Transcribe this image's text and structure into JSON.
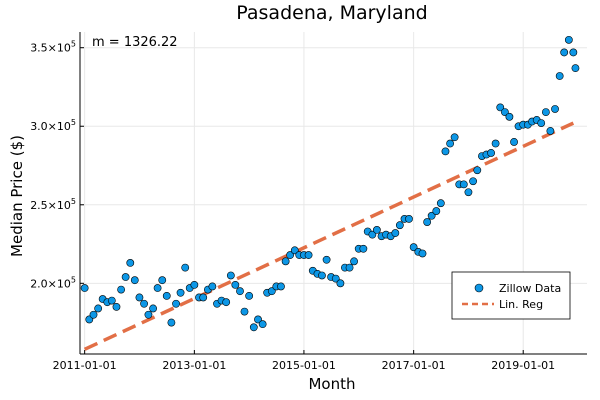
{
  "chart_data": {
    "type": "scatter",
    "title": "Pasadena, Maryland",
    "xlabel": "Month",
    "ylabel": "Median Price ($)",
    "annotation": "m = 1326.22",
    "xlim": [
      "2010-12-01",
      "2020-03-01"
    ],
    "ylim": [
      155000,
      360000
    ],
    "x_ticks": [
      "2011-01-01",
      "2013-01-01",
      "2015-01-01",
      "2017-01-01",
      "2019-01-01"
    ],
    "y_ticks": [
      {
        "value": 200000,
        "mantissa": "2.0",
        "exp": "5"
      },
      {
        "value": 250000,
        "mantissa": "2.5",
        "exp": "5"
      },
      {
        "value": 300000,
        "mantissa": "3.0",
        "exp": "5"
      },
      {
        "value": 350000,
        "mantissa": "3.5",
        "exp": "5"
      }
    ],
    "tick_base": "×10",
    "grid": true,
    "legend_position": "bottom-right",
    "series": [
      {
        "name": "Zillow Data",
        "kind": "scatter",
        "color": "#0d97e6",
        "x": [
          "2011-01-01",
          "2011-02-01",
          "2011-03-01",
          "2011-04-01",
          "2011-05-01",
          "2011-06-01",
          "2011-07-01",
          "2011-08-01",
          "2011-09-01",
          "2011-10-01",
          "2011-11-01",
          "2011-12-01",
          "2012-01-01",
          "2012-02-01",
          "2012-03-01",
          "2012-04-01",
          "2012-05-01",
          "2012-06-01",
          "2012-07-01",
          "2012-08-01",
          "2012-09-01",
          "2012-10-01",
          "2012-11-01",
          "2012-12-01",
          "2013-01-01",
          "2013-02-01",
          "2013-03-01",
          "2013-04-01",
          "2013-05-01",
          "2013-06-01",
          "2013-07-01",
          "2013-08-01",
          "2013-09-01",
          "2013-10-01",
          "2013-11-01",
          "2013-12-01",
          "2014-01-01",
          "2014-02-01",
          "2014-03-01",
          "2014-04-01",
          "2014-05-01",
          "2014-06-01",
          "2014-07-01",
          "2014-08-01",
          "2014-09-01",
          "2014-10-01",
          "2014-11-01",
          "2014-12-01",
          "2015-01-01",
          "2015-02-01",
          "2015-03-01",
          "2015-04-01",
          "2015-05-01",
          "2015-06-01",
          "2015-07-01",
          "2015-08-01",
          "2015-09-01",
          "2015-10-01",
          "2015-11-01",
          "2015-12-01",
          "2016-01-01",
          "2016-02-01",
          "2016-03-01",
          "2016-04-01",
          "2016-05-01",
          "2016-06-01",
          "2016-07-01",
          "2016-08-01",
          "2016-09-01",
          "2016-10-01",
          "2016-11-01",
          "2016-12-01",
          "2017-01-01",
          "2017-02-01",
          "2017-03-01",
          "2017-04-01",
          "2017-05-01",
          "2017-06-01",
          "2017-07-01",
          "2017-08-01",
          "2017-09-01",
          "2017-10-01",
          "2017-11-01",
          "2017-12-01",
          "2018-01-01",
          "2018-02-01",
          "2018-03-01",
          "2018-04-01",
          "2018-05-01",
          "2018-06-01",
          "2018-07-01",
          "2018-08-01",
          "2018-09-01",
          "2018-10-01",
          "2018-11-01",
          "2018-12-01",
          "2019-01-01",
          "2019-02-01",
          "2019-03-01",
          "2019-04-01",
          "2019-05-01",
          "2019-06-01",
          "2019-07-01",
          "2019-08-01",
          "2019-09-01",
          "2019-10-01",
          "2019-11-01",
          "2019-12-01"
        ],
        "y": [
          197000,
          177000,
          180000,
          184000,
          190000,
          188000,
          189000,
          185000,
          196000,
          204000,
          213000,
          202000,
          191000,
          187000,
          180000,
          184000,
          197000,
          202000,
          192000,
          175000,
          187000,
          194000,
          210000,
          197000,
          199000,
          191000,
          191000,
          196000,
          198000,
          187000,
          189000,
          188000,
          205000,
          199000,
          195000,
          182000,
          192000,
          172000,
          177000,
          174000,
          194000,
          195000,
          198000,
          198000,
          214000,
          218000,
          221000,
          218000,
          218000,
          218000,
          208000,
          206000,
          205000,
          215000,
          204000,
          203000,
          200000,
          210000,
          210000,
          214000,
          222000,
          222000,
          233000,
          231000,
          234000,
          230000,
          231000,
          230000,
          232000,
          237000,
          241000,
          241000,
          223000,
          220000,
          219000,
          239000,
          243000,
          246000,
          251000,
          284000,
          289000,
          293000,
          263000,
          263000,
          258000,
          265000,
          272000,
          281000,
          282000,
          283000,
          289000,
          312000,
          309000,
          306000,
          290000,
          300000,
          301000,
          301000,
          303000,
          304000,
          302000,
          309000,
          297000,
          311000,
          332000,
          347000,
          355000,
          347000
        ],
        "extra_points": [
          {
            "x": "2019-12-15",
            "y": 337000
          }
        ]
      },
      {
        "name": "Lin. Reg",
        "kind": "line",
        "color": "#e26f46",
        "dash": true,
        "x": [
          "2011-01-01",
          "2019-12-01"
        ],
        "y": [
          158000,
          302000
        ]
      }
    ]
  }
}
